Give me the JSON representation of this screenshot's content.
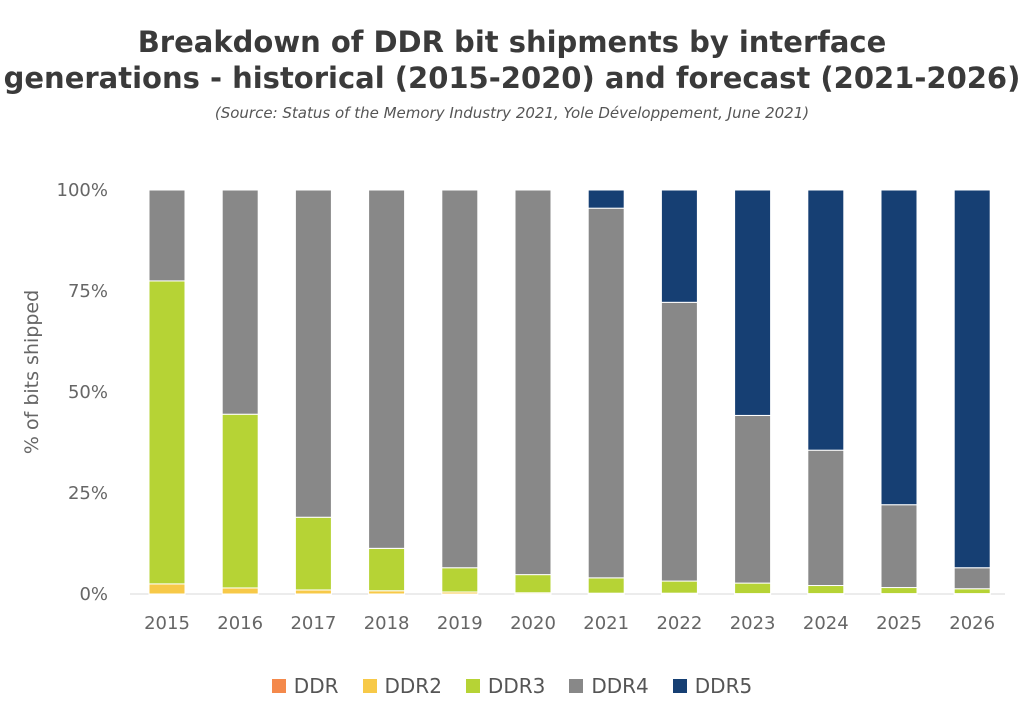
{
  "chart_data": {
    "type": "bar",
    "stacked": true,
    "title_lines": [
      "Breakdown of DDR bit shipments by interface",
      "generations - historical (2015-2020) and forecast (2021-2026)"
    ],
    "subtitle": "(Source: Status of the Memory Industry 2021, Yole Développement, June 2021)",
    "xlabel": "",
    "ylabel": "% of bits shipped",
    "ylim": [
      0,
      100
    ],
    "y_ticks": [
      "0%",
      "25%",
      "50%",
      "75%",
      "100%"
    ],
    "grid": false,
    "legend_position": "bottom",
    "categories": [
      "2015",
      "2016",
      "2017",
      "2018",
      "2019",
      "2020",
      "2021",
      "2022",
      "2023",
      "2024",
      "2025",
      "2026"
    ],
    "series": [
      {
        "name": "DDR",
        "color": "#f4894b",
        "values": [
          0,
          0,
          0,
          0,
          0,
          0,
          0,
          0,
          0,
          0,
          0,
          0
        ]
      },
      {
        "name": "DDR2",
        "color": "#f7c948",
        "values": [
          2.5,
          1.5,
          1.0,
          0.8,
          0.5,
          0.3,
          0.2,
          0.2,
          0.1,
          0.1,
          0.1,
          0.1
        ]
      },
      {
        "name": "DDR3",
        "color": "#b6d335",
        "values": [
          75,
          43,
          18,
          10.5,
          6,
          4.5,
          3.8,
          3,
          2.6,
          2,
          1.5,
          1.2
        ]
      },
      {
        "name": "DDR4",
        "color": "#888888",
        "values": [
          22.5,
          55.5,
          81,
          88.7,
          93.5,
          95.2,
          91.5,
          69,
          41.5,
          33.5,
          20.5,
          5.2
        ]
      },
      {
        "name": "DDR5",
        "color": "#163f73",
        "values": [
          0,
          0,
          0,
          0,
          0,
          0,
          4.5,
          27.8,
          55.8,
          64.4,
          77.9,
          93.5
        ]
      }
    ]
  }
}
